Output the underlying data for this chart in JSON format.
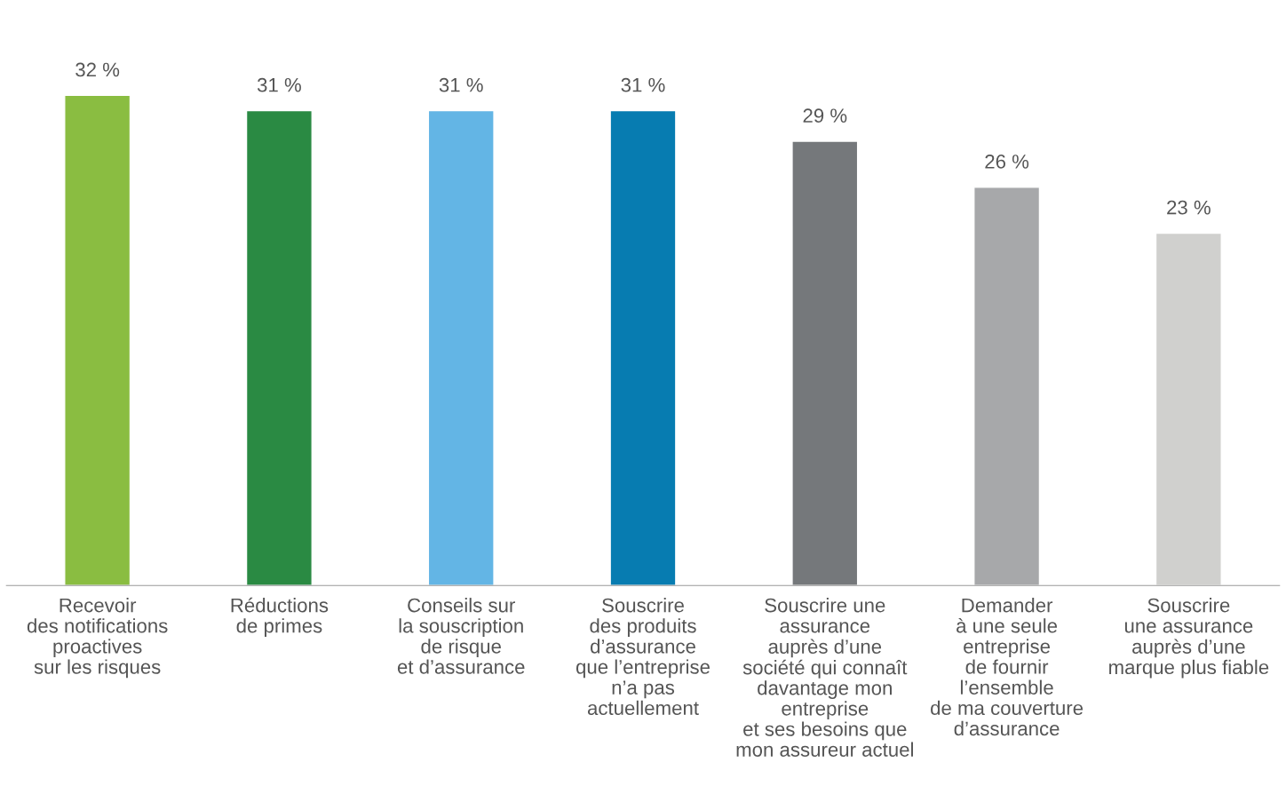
{
  "chart_data": {
    "type": "bar",
    "categories": [
      "Recevoir\ndes notifications\nproactives\nsur les risques",
      "Réductions\nde primes",
      "Conseils sur\nla souscription\nde risque\net d’assurance",
      "Souscrire\ndes produits\nd’assurance\nque l’entreprise\nn’a pas\nactuellement",
      "Souscrire une\nassurance\nauprès d’une\nsociété qui connaît\ndavantage mon\nentreprise\net ses besoins que\nmon assureur actuel",
      "Demander\nà une seule\nentreprise\nde fournir\nl’ensemble\nde ma couverture\nd’assurance",
      "Souscrire\nune assurance\nauprès d’une\nmarque plus fiable"
    ],
    "values": [
      32,
      31,
      31,
      31,
      29,
      26,
      23
    ],
    "colors": [
      "#8abd41",
      "#2a8a43",
      "#63b5e5",
      "#077cb1",
      "#75787b",
      "#a7a8aa",
      "#d0d0ce"
    ],
    "value_labels": [
      "32 %",
      "31 %",
      "31 %",
      "31 %",
      "29 %",
      "26 %",
      "23 %"
    ]
  }
}
